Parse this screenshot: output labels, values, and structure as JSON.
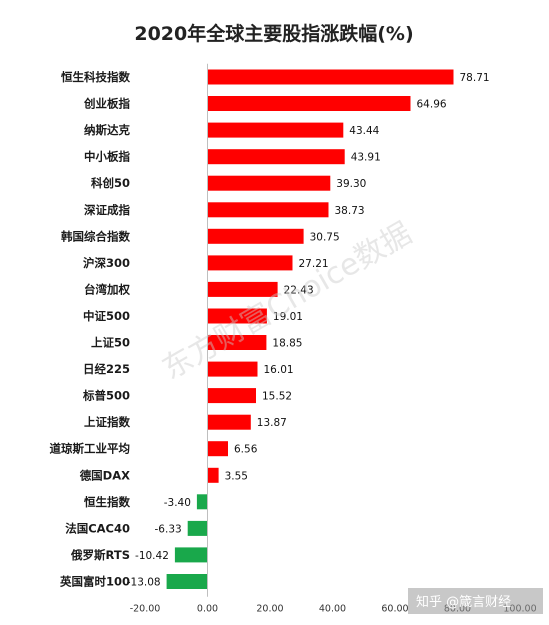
{
  "colors": {
    "positive": "#ff0000",
    "negative": "#19a84b",
    "text": "#1a1a1a",
    "axis": "#bfbfbf"
  },
  "watermark": "东方财富Choice数据",
  "credit": "知乎 @箴言财经",
  "chart_data": {
    "type": "bar",
    "orientation": "horizontal",
    "title": "2020年全球主要股指涨跌幅(%)",
    "xlabel": "",
    "ylabel": "",
    "xlim": [
      -20,
      100
    ],
    "xticks": [
      "-20.00",
      "0.00",
      "20.00",
      "40.00",
      "60.00",
      "80.00",
      "100.00"
    ],
    "xtick_values": [
      -20,
      0,
      20,
      40,
      60,
      80,
      100
    ],
    "grid": false,
    "legend": "none",
    "categories": [
      "恒生科技指数",
      "创业板指",
      "纳斯达克",
      "中小板指",
      "科创50",
      "深证成指",
      "韩国综合指数",
      "沪深300",
      "台湾加权",
      "中证500",
      "上证50",
      "日经225",
      "标普500",
      "上证指数",
      "道琼斯工业平均",
      "德国DAX",
      "恒生指数",
      "法国CAC40",
      "俄罗斯RTS",
      "英国富时100"
    ],
    "values": [
      78.71,
      64.96,
      43.44,
      43.91,
      39.3,
      38.73,
      30.75,
      27.21,
      22.43,
      19.01,
      18.85,
      16.01,
      15.52,
      13.87,
      6.56,
      3.55,
      -3.4,
      -6.33,
      -10.42,
      -13.08
    ],
    "value_labels": [
      "78.71",
      "64.96",
      "43.44",
      "43.91",
      "39.30",
      "38.73",
      "30.75",
      "27.21",
      "22.43",
      "19.01",
      "18.85",
      "16.01",
      "15.52",
      "13.87",
      "6.56",
      "3.55",
      "-3.40",
      "-6.33",
      "-10.42",
      "-13.08"
    ]
  }
}
